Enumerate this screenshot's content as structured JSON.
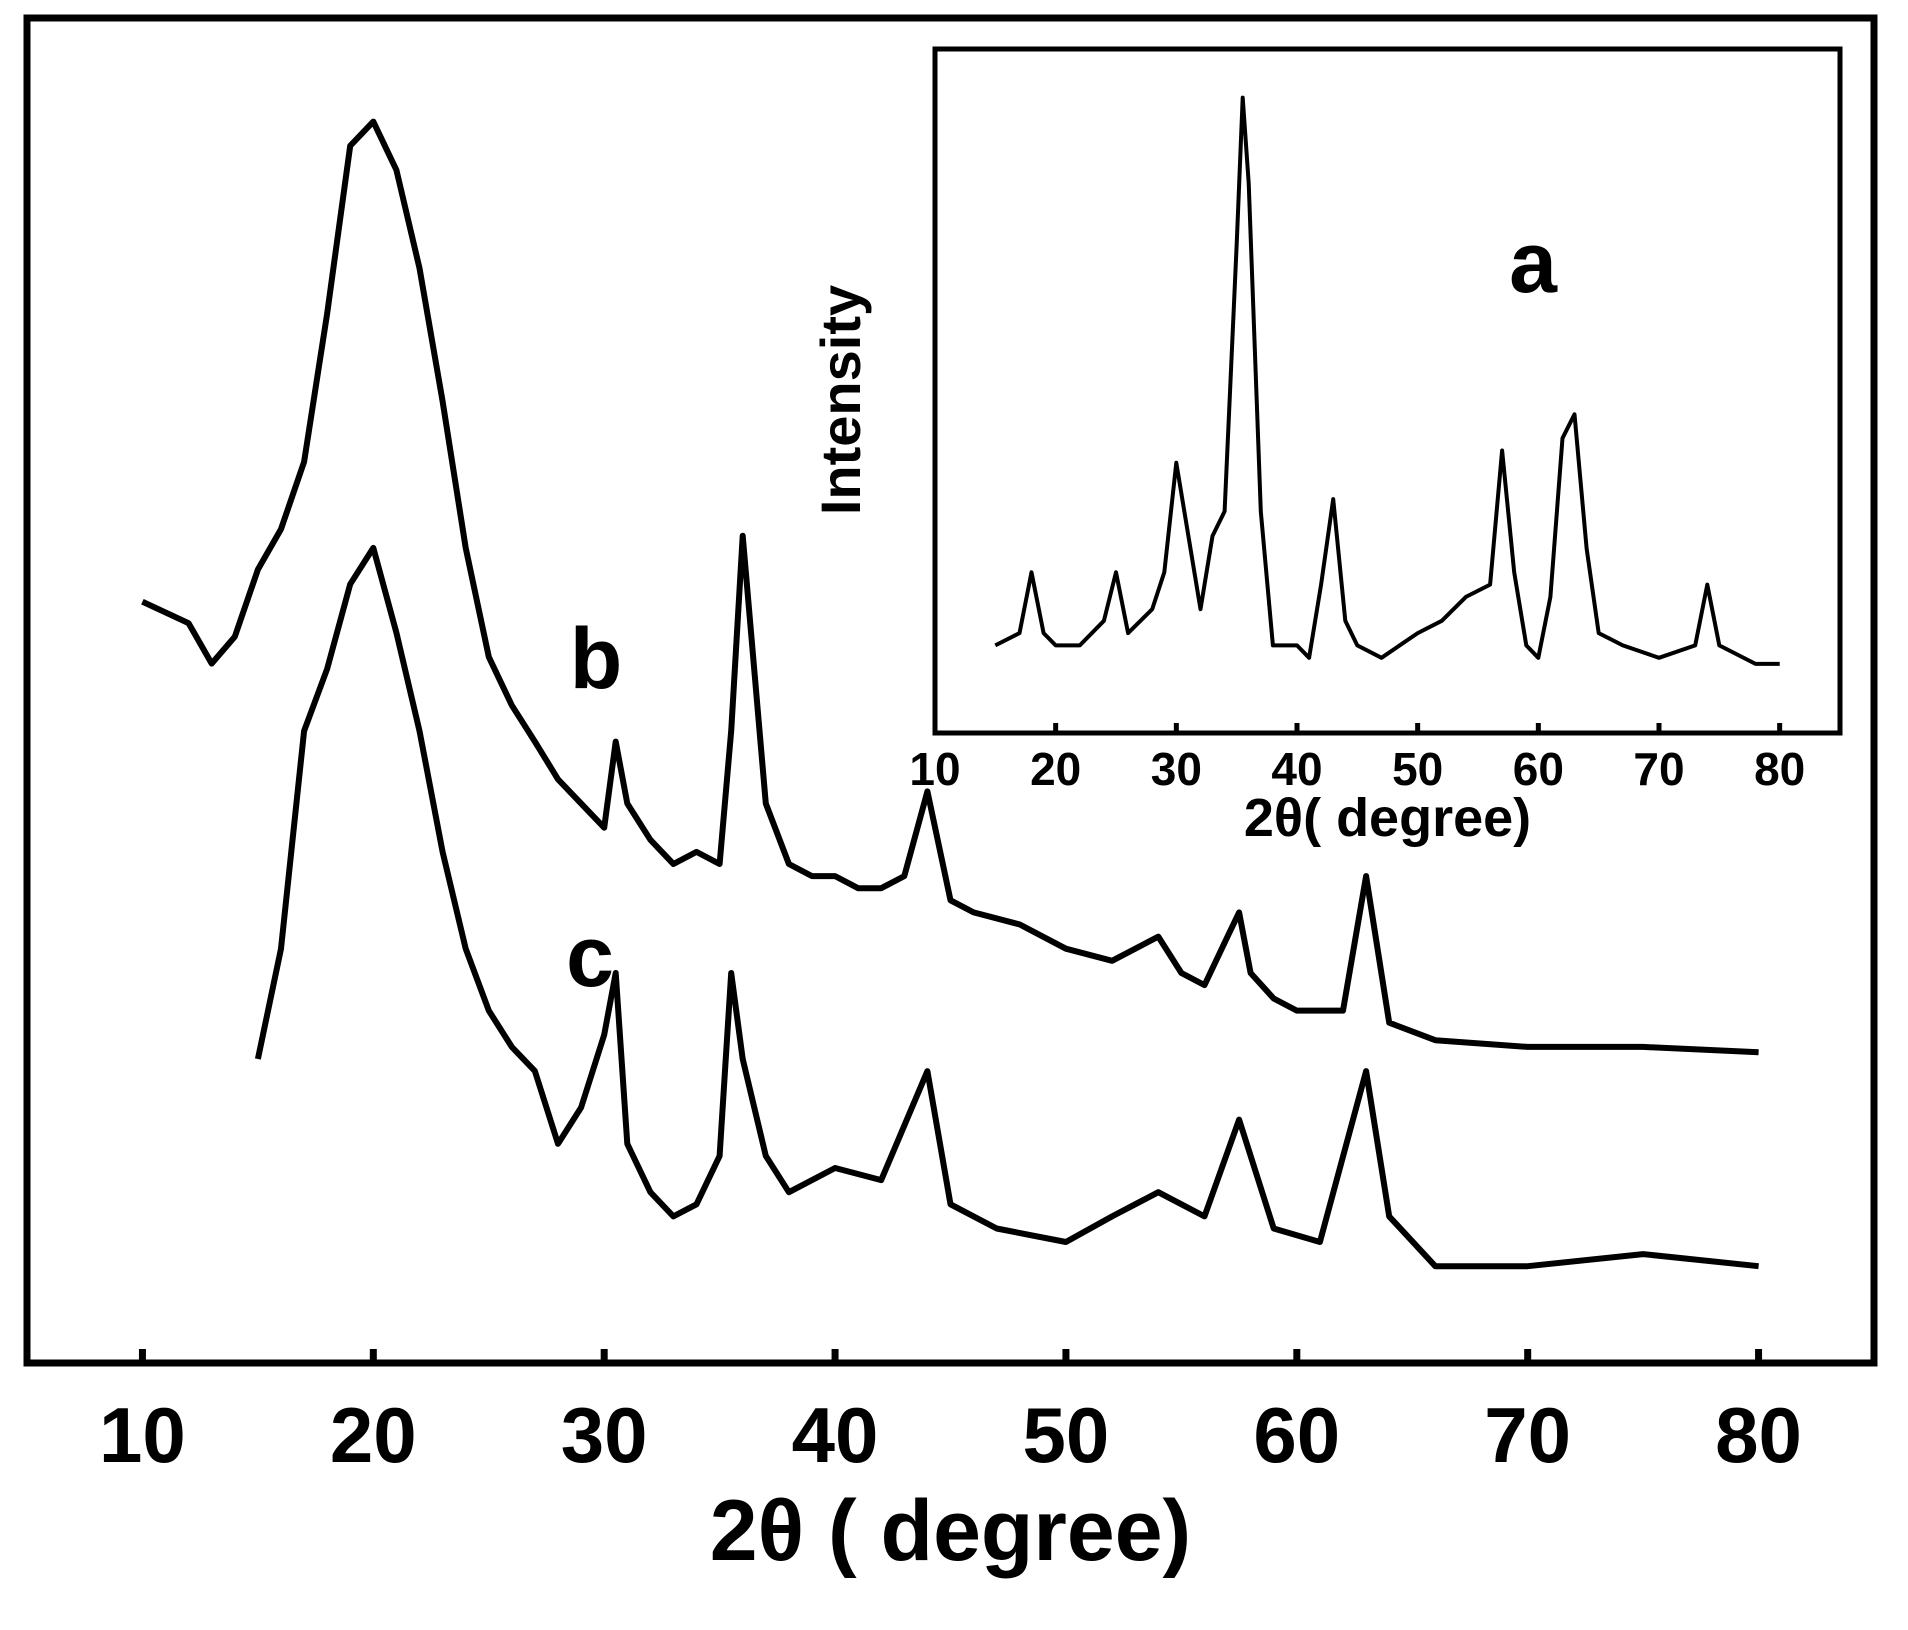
{
  "chart_data": [
    {
      "type": "line",
      "xlabel": "2θ ( degree)",
      "xlim": [
        5,
        85
      ],
      "xticks": [
        10,
        20,
        30,
        40,
        50,
        60,
        70,
        80
      ],
      "ylim": [
        0,
        100
      ],
      "series": [
        {
          "name": "b",
          "color": "#000000",
          "x": [
            10,
            12,
            13,
            14,
            15,
            16,
            17,
            18,
            19,
            20,
            21,
            22,
            23,
            24,
            25,
            26,
            27,
            28,
            29,
            30,
            30.5,
            31,
            32,
            33,
            34,
            35,
            35.5,
            36,
            37,
            38,
            39,
            40,
            41,
            42,
            43,
            44,
            45,
            46,
            48,
            50,
            52,
            54,
            55,
            56,
            57,
            57.5,
            58,
            59,
            60,
            62,
            63,
            64,
            66,
            70,
            75,
            80
          ],
          "values": [
            56.6,
            55,
            52,
            54,
            59,
            62,
            67,
            78,
            90.5,
            92.3,
            88.7,
            81.4,
            71.5,
            60.6,
            52.5,
            48.9,
            46.2,
            43.4,
            41.6,
            39.8,
            46.2,
            41.6,
            38.9,
            37.1,
            38,
            37.1,
            47,
            61.5,
            41.6,
            37.1,
            36.2,
            36.2,
            35.3,
            35.3,
            36.2,
            42.5,
            34.4,
            33.5,
            32.6,
            30.8,
            29.9,
            31.7,
            29,
            28.1,
            31.7,
            33.5,
            29,
            27.1,
            26.2,
            26.2,
            36.2,
            25.3,
            24,
            23.5,
            23.5,
            23.1
          ]
        },
        {
          "name": "c",
          "color": "#000000",
          "x": [
            15,
            16,
            17,
            18,
            19,
            20,
            21,
            22,
            23,
            24,
            25,
            26,
            27,
            28,
            29,
            30,
            30.5,
            31,
            32,
            33,
            34,
            35,
            35.5,
            36,
            37,
            38,
            40,
            42,
            44,
            45,
            47,
            50,
            52,
            54,
            56,
            57.5,
            59,
            61,
            63,
            64,
            66,
            70,
            75,
            80
          ],
          "values": [
            22.6,
            30.8,
            47,
            51.6,
            57.9,
            60.6,
            54.3,
            47,
            38,
            30.8,
            26.2,
            23.5,
            21.7,
            16.3,
            19,
            24.4,
            29,
            16.3,
            12.7,
            10.9,
            11.8,
            15.4,
            29,
            22.6,
            15.4,
            12.7,
            14.5,
            13.6,
            21.7,
            11.8,
            10,
            9,
            10.9,
            12.7,
            10.9,
            18.1,
            10,
            9,
            21.7,
            10.9,
            7.2,
            7.2,
            8.1,
            7.2
          ]
        }
      ]
    },
    {
      "type": "line",
      "xlabel": "2θ( degree)",
      "ylabel": "Intensity",
      "xlim": [
        10,
        85
      ],
      "xticks": [
        10,
        20,
        30,
        40,
        50,
        60,
        70,
        80
      ],
      "ylim": [
        0,
        100
      ],
      "series": [
        {
          "name": "a",
          "color": "#000000",
          "x": [
            15,
            17,
            18,
            19,
            20,
            22,
            24,
            25,
            26,
            28,
            29,
            30,
            31,
            32,
            33,
            34,
            35,
            35.5,
            36,
            37,
            38,
            40,
            41,
            42,
            43,
            44,
            45,
            47,
            50,
            52,
            54,
            56,
            57,
            58,
            59,
            60,
            61,
            62,
            63,
            64,
            65,
            67,
            70,
            73,
            74,
            75,
            78,
            80
          ],
          "values": [
            12.8,
            14.6,
            23.5,
            14.6,
            12.8,
            12.8,
            16.4,
            23.5,
            14.6,
            18.1,
            23.5,
            39.5,
            28.8,
            18.1,
            28.8,
            32.4,
            71.5,
            92.9,
            80.4,
            32.4,
            12.8,
            12.8,
            11,
            21.7,
            34.2,
            16.4,
            12.8,
            11,
            14.6,
            16.4,
            19.9,
            21.7,
            41.3,
            23.5,
            12.8,
            11,
            19.9,
            43.1,
            46.6,
            27,
            14.6,
            12.8,
            11,
            12.8,
            21.7,
            12.8,
            10.1,
            10.1
          ]
        }
      ]
    }
  ]
}
